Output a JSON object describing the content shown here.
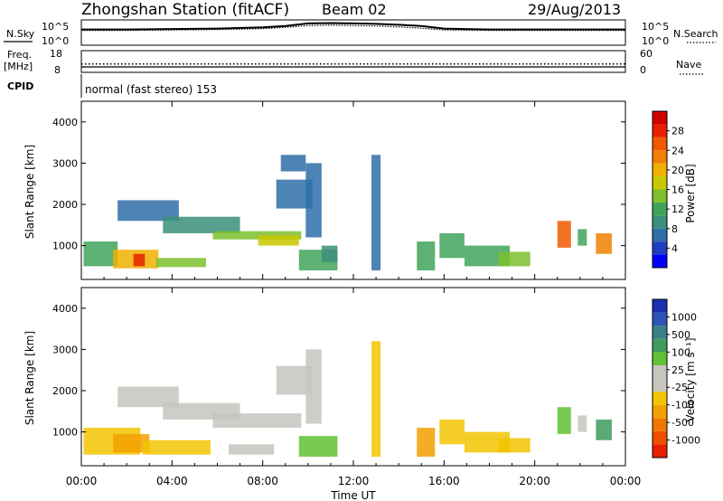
{
  "header": {
    "station": "Zhongshan Station (fitACF)",
    "beam": "Beam 02",
    "date": "29/Aug/2013"
  },
  "left_labels": {
    "nsky": "N.Sky",
    "freq_line1": "Freq.",
    "freq_line2": "[MHz]",
    "cpid": "CPID"
  },
  "right_labels": {
    "nsearch": "N.Search",
    "nave": "Nave"
  },
  "mode_text": "normal (fast stereo) 153",
  "axes": {
    "noise_left_ticks": [
      "10^5",
      "10^0"
    ],
    "noise_right_ticks": [
      "10^5",
      "10^0"
    ],
    "freq_left_ticks": [
      "18",
      "8"
    ],
    "nave_right_ticks": [
      "60",
      "0"
    ],
    "range_ticks": [
      "4000",
      "3000",
      "2000",
      "1000"
    ],
    "time_ticks": [
      "00:00",
      "04:00",
      "08:00",
      "12:00",
      "16:00",
      "20:00",
      "00:00"
    ],
    "xlabel": "Time UT",
    "ylabel": "Slant Range [km]"
  },
  "colorbars": {
    "power": {
      "label": "Power [dB]",
      "ticks": [
        "28",
        "24",
        "20",
        "16",
        "12",
        "8",
        "4"
      ],
      "colors": [
        "#0000ff",
        "#1e3fbf",
        "#2f6fa8",
        "#3a8f7a",
        "#41a35a",
        "#7dbf2d",
        "#c8c800",
        "#f0b000",
        "#f08000",
        "#f05a00",
        "#e82000",
        "#d00000"
      ]
    },
    "velocity": {
      "label": "Velocity [m s⁻¹]",
      "ticks": [
        "1000",
        "500",
        "100",
        "25",
        "-25",
        "-100",
        "-500",
        "-1000"
      ],
      "colors": [
        "#1a2fb0",
        "#2e55b5",
        "#3a7f86",
        "#3d9b5e",
        "#5fc233",
        "#c6c6bf",
        "#c6c6bf",
        "#f2c400",
        "#f2a000",
        "#f07800",
        "#ee5000",
        "#e82000"
      ]
    }
  },
  "chart_data": [
    {
      "type": "line",
      "title": "N.Sky / N.Search",
      "x": [
        0,
        2,
        4,
        6,
        8,
        9,
        10,
        11,
        12,
        13,
        14,
        15,
        16,
        18,
        20,
        22,
        24
      ],
      "series": [
        {
          "name": "N.Sky",
          "values": [
            3.2,
            3.2,
            3.3,
            3.4,
            3.7,
            4.0,
            4.6,
            4.7,
            4.6,
            4.5,
            4.3,
            4.0,
            3.4,
            3.2,
            3.2,
            3.2,
            3.2
          ]
        },
        {
          "name": "N.Search",
          "values": [
            3.0,
            3.0,
            3.1,
            3.2,
            3.4,
            3.7,
            4.1,
            4.2,
            4.1,
            4.0,
            3.8,
            3.5,
            3.1,
            3.0,
            3.0,
            3.0,
            3.0
          ]
        }
      ],
      "ylim": [
        0,
        5
      ],
      "xlim": [
        0,
        24
      ]
    },
    {
      "type": "line",
      "title": "Freq / Nave",
      "x": [
        0,
        6,
        12,
        18,
        24
      ],
      "series": [
        {
          "name": "Freq.",
          "values": [
            10.0,
            10.0,
            10.0,
            10.0,
            10.0
          ]
        },
        {
          "name": "Nave",
          "values": [
            22,
            22,
            22,
            22,
            22
          ]
        }
      ],
      "xlim": [
        0,
        24
      ]
    },
    {
      "type": "heatmap",
      "title": "Power [dB]",
      "xlabel": "Time UT",
      "ylabel": "Slant Range [km]",
      "xlim": [
        0,
        24
      ],
      "ylim": [
        180,
        4500
      ],
      "patches": [
        {
          "t0": 0.1,
          "t1": 1.6,
          "r0": 500,
          "r1": 1100,
          "value": 10
        },
        {
          "t0": 1.4,
          "t1": 3.4,
          "r0": 450,
          "r1": 900,
          "value": 18
        },
        {
          "t0": 2.3,
          "t1": 2.8,
          "r0": 500,
          "r1": 800,
          "value": 26
        },
        {
          "t0": 3.3,
          "t1": 5.5,
          "r0": 480,
          "r1": 700,
          "value": 14
        },
        {
          "t0": 1.6,
          "t1": 4.3,
          "r0": 1600,
          "r1": 2100,
          "value": 6
        },
        {
          "t0": 3.6,
          "t1": 7.0,
          "r0": 1300,
          "r1": 1700,
          "value": 8
        },
        {
          "t0": 5.8,
          "t1": 9.7,
          "r0": 1150,
          "r1": 1350,
          "value": 14
        },
        {
          "t0": 7.8,
          "t1": 9.6,
          "r0": 1000,
          "r1": 1250,
          "value": 17
        },
        {
          "t0": 8.6,
          "t1": 10.2,
          "r0": 1900,
          "r1": 2600,
          "value": 6
        },
        {
          "t0": 8.8,
          "t1": 9.9,
          "r0": 2800,
          "r1": 3200,
          "value": 5
        },
        {
          "t0": 9.9,
          "t1": 10.6,
          "r0": 1200,
          "r1": 3000,
          "value": 7
        },
        {
          "t0": 9.6,
          "t1": 11.3,
          "r0": 400,
          "r1": 900,
          "value": 12
        },
        {
          "t0": 10.6,
          "t1": 11.3,
          "r0": 600,
          "r1": 1000,
          "value": 9
        },
        {
          "t0": 12.8,
          "t1": 13.2,
          "r0": 400,
          "r1": 3200,
          "value": 5
        },
        {
          "t0": 14.8,
          "t1": 15.6,
          "r0": 400,
          "r1": 1100,
          "value": 10
        },
        {
          "t0": 15.8,
          "t1": 16.9,
          "r0": 700,
          "r1": 1300,
          "value": 12
        },
        {
          "t0": 16.9,
          "t1": 18.9,
          "r0": 500,
          "r1": 1000,
          "value": 12
        },
        {
          "t0": 18.4,
          "t1": 19.8,
          "r0": 500,
          "r1": 850,
          "value": 14
        },
        {
          "t0": 21.0,
          "t1": 21.6,
          "r0": 950,
          "r1": 1600,
          "value": 24
        },
        {
          "t0": 21.9,
          "t1": 22.3,
          "r0": 1000,
          "r1": 1400,
          "value": 12
        },
        {
          "t0": 22.7,
          "t1": 23.4,
          "r0": 800,
          "r1": 1300,
          "value": 22
        }
      ]
    },
    {
      "type": "heatmap",
      "title": "Velocity [m s-1]",
      "xlabel": "Time UT",
      "ylabel": "Slant Range [km]",
      "xlim": [
        0,
        24
      ],
      "ylim": [
        180,
        4500
      ],
      "patches": [
        {
          "t0": 0.1,
          "t1": 2.6,
          "r0": 450,
          "r1": 1100,
          "value": -300
        },
        {
          "t0": 1.4,
          "t1": 3.0,
          "r0": 500,
          "r1": 950,
          "value": -500
        },
        {
          "t0": 2.7,
          "t1": 5.7,
          "r0": 450,
          "r1": 800,
          "value": -300
        },
        {
          "t0": 1.6,
          "t1": 4.3,
          "r0": 1600,
          "r1": 2100,
          "value": 0
        },
        {
          "t0": 3.6,
          "t1": 7.0,
          "r0": 1300,
          "r1": 1700,
          "value": 0
        },
        {
          "t0": 5.8,
          "t1": 9.7,
          "r0": 1100,
          "r1": 1450,
          "value": 0
        },
        {
          "t0": 8.6,
          "t1": 10.2,
          "r0": 1900,
          "r1": 2600,
          "value": 0
        },
        {
          "t0": 9.9,
          "t1": 10.6,
          "r0": 1200,
          "r1": 3000,
          "value": 10
        },
        {
          "t0": 9.6,
          "t1": 11.3,
          "r0": 400,
          "r1": 900,
          "value": 200
        },
        {
          "t0": 6.5,
          "t1": 8.5,
          "r0": 450,
          "r1": 700,
          "value": -150
        },
        {
          "t0": 12.8,
          "t1": 13.2,
          "r0": 400,
          "r1": 3200,
          "value": -200
        },
        {
          "t0": 14.8,
          "t1": 15.6,
          "r0": 400,
          "r1": 1100,
          "value": -400
        },
        {
          "t0": 15.8,
          "t1": 16.9,
          "r0": 700,
          "r1": 1300,
          "value": -200
        },
        {
          "t0": 16.9,
          "t1": 18.9,
          "r0": 500,
          "r1": 1000,
          "value": -300
        },
        {
          "t0": 18.4,
          "t1": 19.8,
          "r0": 500,
          "r1": 850,
          "value": -200
        },
        {
          "t0": 21.0,
          "t1": 21.6,
          "r0": 950,
          "r1": 1600,
          "value": 300
        },
        {
          "t0": 21.9,
          "t1": 22.3,
          "r0": 1000,
          "r1": 1400,
          "value": 150
        },
        {
          "t0": 22.7,
          "t1": 23.4,
          "r0": 800,
          "r1": 1300,
          "value": 400
        }
      ]
    }
  ]
}
